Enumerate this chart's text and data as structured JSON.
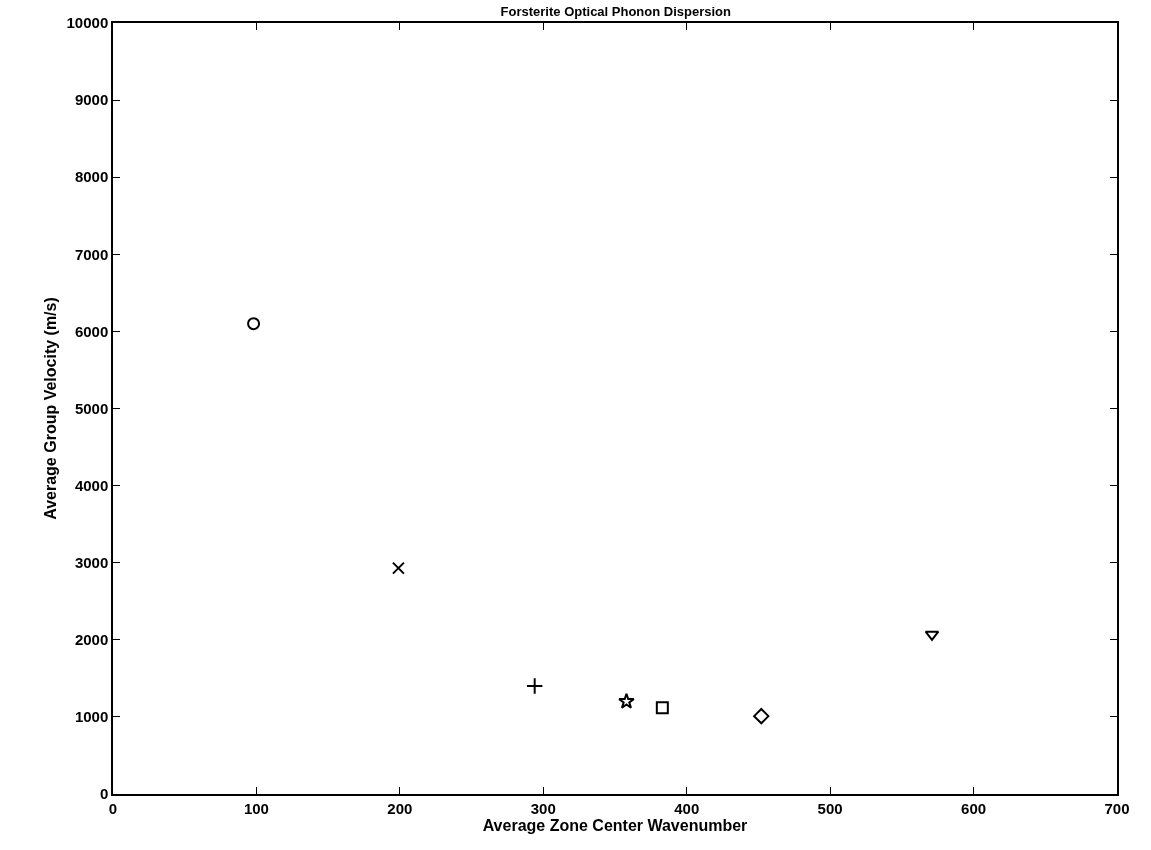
{
  "chart_data": {
    "type": "scatter",
    "title": "Forsterite Optical Phonon Dispersion",
    "xlabel": "Average Zone Center Wavenumber",
    "ylabel": "Average Group Velocity (m/s)",
    "xlim": [
      0,
      700
    ],
    "xticks": [
      0,
      100,
      200,
      300,
      400,
      500,
      600,
      700
    ],
    "ylim": [
      0,
      10000
    ],
    "yticks": [
      0,
      1000,
      2000,
      3000,
      4000,
      5000,
      6000,
      7000,
      8000,
      9000,
      10000
    ],
    "grid": false,
    "series": [
      {
        "color": "#000000",
        "marker": "circle",
        "x": [
          98
        ],
        "values": [
          6100
        ]
      },
      {
        "color": "#000000",
        "marker": "cross",
        "x": [
          199
        ],
        "values": [
          2930
        ]
      },
      {
        "color": "#000000",
        "marker": "plus",
        "x": [
          294
        ],
        "values": [
          1400
        ]
      },
      {
        "color": "#000000",
        "marker": "star",
        "x": [
          358
        ],
        "values": [
          1200
        ]
      },
      {
        "color": "#000000",
        "marker": "square",
        "x": [
          383
        ],
        "values": [
          1120
        ]
      },
      {
        "color": "#000000",
        "marker": "diamond",
        "x": [
          452
        ],
        "values": [
          1010
        ]
      },
      {
        "color": "#000000",
        "marker": "triangle",
        "x": [
          571
        ],
        "values": [
          2070
        ]
      }
    ]
  }
}
